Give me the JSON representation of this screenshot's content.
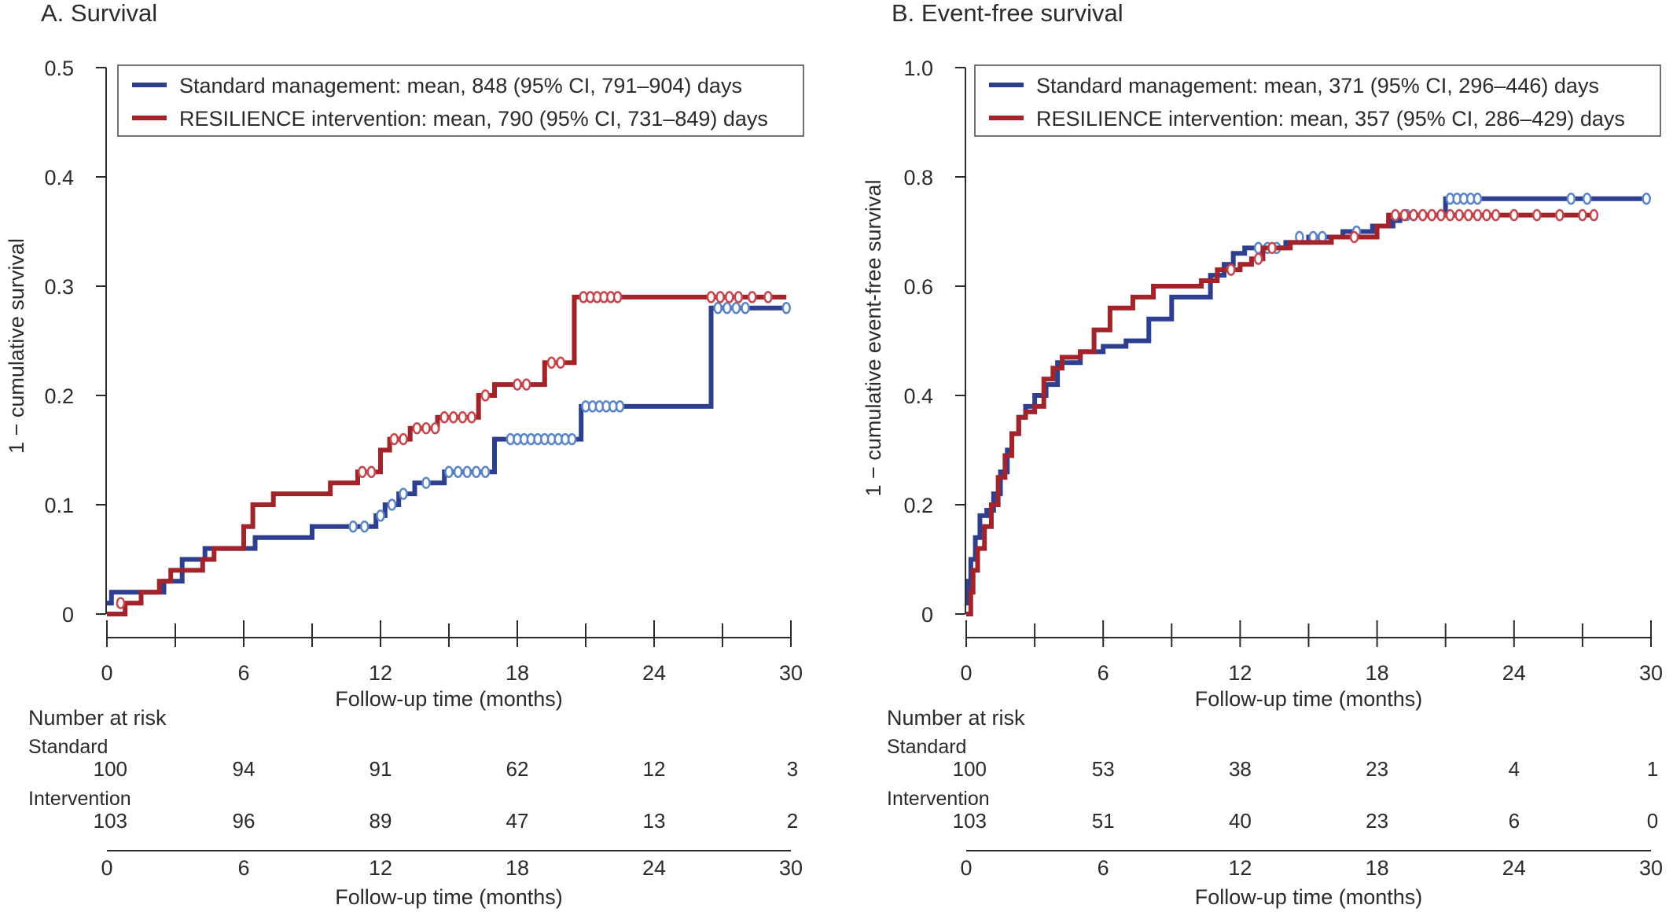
{
  "colors": {
    "standard": "#2e3f8f",
    "standard_censor": "#5b85c8",
    "intervention": "#a3232a",
    "intervention_censor": "#c8464c",
    "axis": "#2b2b2b"
  },
  "chart_data": [
    {
      "type": "line",
      "subtype": "kaplan-meier step",
      "title": "A. Survival",
      "xlabel": "Follow-up time (months)",
      "ylabel": "1 − cumulative survival",
      "xlim": [
        0,
        30
      ],
      "ylim": [
        0,
        0.5
      ],
      "x_ticks": [
        "0",
        "6",
        "12",
        "18",
        "24",
        "30"
      ],
      "x_tick_values": [
        0,
        6,
        12,
        18,
        24,
        30
      ],
      "y_ticks": [
        "0",
        "0.1",
        "0.2",
        "0.3",
        "0.4",
        "0.5"
      ],
      "y_tick_values": [
        0,
        0.1,
        0.2,
        0.3,
        0.4,
        0.5
      ],
      "legend_position": "top-left",
      "series": [
        {
          "name": "Standard management: mean, 848 (95% CI, 791–904) days",
          "color_key": "standard",
          "steps": [
            [
              0,
              0.01
            ],
            [
              0.2,
              0.02
            ],
            [
              1.5,
              0.02
            ],
            [
              2.5,
              0.03
            ],
            [
              3.3,
              0.05
            ],
            [
              4.3,
              0.06
            ],
            [
              6.5,
              0.07
            ],
            [
              9.0,
              0.08
            ],
            [
              11.8,
              0.09
            ],
            [
              12.2,
              0.1
            ],
            [
              12.8,
              0.11
            ],
            [
              13.5,
              0.12
            ],
            [
              14.8,
              0.13
            ],
            [
              17.0,
              0.16
            ],
            [
              20.8,
              0.19
            ],
            [
              26.5,
              0.28
            ],
            [
              29.8,
              0.28
            ]
          ],
          "censored": [
            [
              10.8,
              0.08
            ],
            [
              11.3,
              0.08
            ],
            [
              12.0,
              0.09
            ],
            [
              12.5,
              0.1
            ],
            [
              13.0,
              0.11
            ],
            [
              14.0,
              0.12
            ],
            [
              15.0,
              0.13
            ],
            [
              15.4,
              0.13
            ],
            [
              15.8,
              0.13
            ],
            [
              16.2,
              0.13
            ],
            [
              16.6,
              0.13
            ],
            [
              17.7,
              0.16
            ],
            [
              18.0,
              0.16
            ],
            [
              18.3,
              0.16
            ],
            [
              18.6,
              0.16
            ],
            [
              18.9,
              0.16
            ],
            [
              19.2,
              0.16
            ],
            [
              19.5,
              0.16
            ],
            [
              19.8,
              0.16
            ],
            [
              20.1,
              0.16
            ],
            [
              20.4,
              0.16
            ],
            [
              21.0,
              0.19
            ],
            [
              21.3,
              0.19
            ],
            [
              21.6,
              0.19
            ],
            [
              21.9,
              0.19
            ],
            [
              22.2,
              0.19
            ],
            [
              22.5,
              0.19
            ],
            [
              26.8,
              0.28
            ],
            [
              27.2,
              0.28
            ],
            [
              27.6,
              0.28
            ],
            [
              28.0,
              0.28
            ],
            [
              29.8,
              0.28
            ]
          ]
        },
        {
          "name": "RESILIENCE intervention: mean, 790 (95% CI, 731–849) days",
          "color_key": "intervention",
          "steps": [
            [
              0,
              0
            ],
            [
              0.8,
              0.01
            ],
            [
              1.5,
              0.02
            ],
            [
              2.3,
              0.03
            ],
            [
              2.8,
              0.04
            ],
            [
              4.2,
              0.05
            ],
            [
              4.7,
              0.06
            ],
            [
              6.0,
              0.08
            ],
            [
              6.4,
              0.1
            ],
            [
              7.3,
              0.11
            ],
            [
              9.8,
              0.12
            ],
            [
              11.0,
              0.13
            ],
            [
              12.0,
              0.15
            ],
            [
              12.4,
              0.16
            ],
            [
              13.3,
              0.17
            ],
            [
              14.5,
              0.18
            ],
            [
              16.3,
              0.2
            ],
            [
              17.0,
              0.21
            ],
            [
              19.2,
              0.23
            ],
            [
              20.5,
              0.29
            ],
            [
              29.8,
              0.29
            ]
          ],
          "censored": [
            [
              0.6,
              0.01
            ],
            [
              11.2,
              0.13
            ],
            [
              11.6,
              0.13
            ],
            [
              12.6,
              0.16
            ],
            [
              13.0,
              0.16
            ],
            [
              13.6,
              0.17
            ],
            [
              14.0,
              0.17
            ],
            [
              14.4,
              0.17
            ],
            [
              14.8,
              0.18
            ],
            [
              15.2,
              0.18
            ],
            [
              15.6,
              0.18
            ],
            [
              16.0,
              0.18
            ],
            [
              16.6,
              0.2
            ],
            [
              18.0,
              0.21
            ],
            [
              18.4,
              0.21
            ],
            [
              19.5,
              0.23
            ],
            [
              19.9,
              0.23
            ],
            [
              20.9,
              0.29
            ],
            [
              21.2,
              0.29
            ],
            [
              21.5,
              0.29
            ],
            [
              21.8,
              0.29
            ],
            [
              22.1,
              0.29
            ],
            [
              22.4,
              0.29
            ],
            [
              26.5,
              0.29
            ],
            [
              26.9,
              0.29
            ],
            [
              27.3,
              0.29
            ],
            [
              27.7,
              0.29
            ],
            [
              28.3,
              0.29
            ],
            [
              29.0,
              0.29
            ]
          ]
        }
      ],
      "risk_table": {
        "header": "Number at risk",
        "rows": [
          {
            "label": "Standard",
            "values": [
              "100",
              "94",
              "91",
              "62",
              "12",
              "3"
            ]
          },
          {
            "label": "Intervention",
            "values": [
              "103",
              "96",
              "89",
              "47",
              "13",
              "2"
            ]
          }
        ],
        "x_ticks": [
          "0",
          "6",
          "12",
          "18",
          "24",
          "30"
        ],
        "xlabel": "Follow-up time (months)"
      }
    },
    {
      "type": "line",
      "subtype": "kaplan-meier step",
      "title": "B. Event-free survival",
      "xlabel": "Follow-up time (months)",
      "ylabel": "1 − cumulative event-free survival",
      "xlim": [
        0,
        30
      ],
      "ylim": [
        0,
        1.0
      ],
      "x_ticks": [
        "0",
        "6",
        "12",
        "18",
        "24",
        "30"
      ],
      "x_tick_values": [
        0,
        6,
        12,
        18,
        24,
        30
      ],
      "y_ticks": [
        "0",
        "0.2",
        "0.4",
        "0.6",
        "0.8",
        "1.0"
      ],
      "y_tick_values": [
        0,
        0.2,
        0.4,
        0.6,
        0.8,
        1.0
      ],
      "legend_position": "top-left",
      "series": [
        {
          "name": "Standard management: mean, 371 (95% CI, 296–446) days",
          "color_key": "standard",
          "steps": [
            [
              0,
              0.02
            ],
            [
              0.1,
              0.06
            ],
            [
              0.2,
              0.1
            ],
            [
              0.4,
              0.14
            ],
            [
              0.6,
              0.18
            ],
            [
              0.9,
              0.19
            ],
            [
              1.2,
              0.22
            ],
            [
              1.5,
              0.26
            ],
            [
              1.8,
              0.3
            ],
            [
              2.0,
              0.33
            ],
            [
              2.3,
              0.36
            ],
            [
              2.6,
              0.38
            ],
            [
              3.0,
              0.4
            ],
            [
              3.5,
              0.42
            ],
            [
              4.0,
              0.46
            ],
            [
              5.0,
              0.48
            ],
            [
              6.0,
              0.49
            ],
            [
              7.0,
              0.5
            ],
            [
              8.0,
              0.54
            ],
            [
              9.0,
              0.58
            ],
            [
              10.7,
              0.62
            ],
            [
              11.3,
              0.64
            ],
            [
              11.7,
              0.66
            ],
            [
              12.2,
              0.67
            ],
            [
              14.0,
              0.68
            ],
            [
              15.0,
              0.69
            ],
            [
              16.5,
              0.7
            ],
            [
              17.8,
              0.71
            ],
            [
              18.7,
              0.72
            ],
            [
              19.0,
              0.73
            ],
            [
              21.0,
              0.76
            ],
            [
              29.8,
              0.76
            ]
          ],
          "censored": [
            [
              12.8,
              0.67
            ],
            [
              13.2,
              0.67
            ],
            [
              13.6,
              0.67
            ],
            [
              14.6,
              0.69
            ],
            [
              15.2,
              0.69
            ],
            [
              15.6,
              0.69
            ],
            [
              17.1,
              0.7
            ],
            [
              19.3,
              0.73
            ],
            [
              19.6,
              0.73
            ],
            [
              20.0,
              0.73
            ],
            [
              20.4,
              0.73
            ],
            [
              21.2,
              0.76
            ],
            [
              21.5,
              0.76
            ],
            [
              21.8,
              0.76
            ],
            [
              22.1,
              0.76
            ],
            [
              22.4,
              0.76
            ],
            [
              26.5,
              0.76
            ],
            [
              27.2,
              0.76
            ],
            [
              29.8,
              0.76
            ]
          ]
        },
        {
          "name": "RESILIENCE intervention: mean, 357 (95% CI, 286–429) days",
          "color_key": "intervention",
          "steps": [
            [
              0,
              0
            ],
            [
              0.2,
              0.04
            ],
            [
              0.3,
              0.08
            ],
            [
              0.5,
              0.12
            ],
            [
              0.8,
              0.16
            ],
            [
              1.1,
              0.2
            ],
            [
              1.4,
              0.25
            ],
            [
              1.7,
              0.29
            ],
            [
              2.0,
              0.33
            ],
            [
              2.3,
              0.36
            ],
            [
              2.6,
              0.37
            ],
            [
              3.0,
              0.38
            ],
            [
              3.4,
              0.43
            ],
            [
              3.8,
              0.45
            ],
            [
              4.2,
              0.47
            ],
            [
              5.0,
              0.48
            ],
            [
              5.6,
              0.52
            ],
            [
              6.3,
              0.56
            ],
            [
              7.3,
              0.58
            ],
            [
              8.2,
              0.6
            ],
            [
              10.3,
              0.61
            ],
            [
              11.0,
              0.63
            ],
            [
              12.0,
              0.64
            ],
            [
              12.5,
              0.65
            ],
            [
              13.0,
              0.67
            ],
            [
              14.2,
              0.68
            ],
            [
              16.0,
              0.69
            ],
            [
              18.0,
              0.71
            ],
            [
              18.5,
              0.73
            ],
            [
              27.5,
              0.73
            ]
          ],
          "censored": [
            [
              11.6,
              0.63
            ],
            [
              12.8,
              0.65
            ],
            [
              13.4,
              0.67
            ],
            [
              17.0,
              0.69
            ],
            [
              18.8,
              0.73
            ],
            [
              19.2,
              0.73
            ],
            [
              19.6,
              0.73
            ],
            [
              20.0,
              0.73
            ],
            [
              20.4,
              0.73
            ],
            [
              20.8,
              0.73
            ],
            [
              21.2,
              0.73
            ],
            [
              21.6,
              0.73
            ],
            [
              22.0,
              0.73
            ],
            [
              22.4,
              0.73
            ],
            [
              22.8,
              0.73
            ],
            [
              23.2,
              0.73
            ],
            [
              24.0,
              0.73
            ],
            [
              25.0,
              0.73
            ],
            [
              26.0,
              0.73
            ],
            [
              27.0,
              0.73
            ],
            [
              27.5,
              0.73
            ]
          ]
        }
      ],
      "risk_table": {
        "header": "Number at risk",
        "rows": [
          {
            "label": "Standard",
            "values": [
              "100",
              "53",
              "38",
              "23",
              "4",
              "1"
            ]
          },
          {
            "label": "Intervention",
            "values": [
              "103",
              "51",
              "40",
              "23",
              "6",
              "0"
            ]
          }
        ],
        "x_ticks": [
          "0",
          "6",
          "12",
          "18",
          "24",
          "30"
        ],
        "xlabel": "Follow-up time (months)"
      }
    }
  ]
}
